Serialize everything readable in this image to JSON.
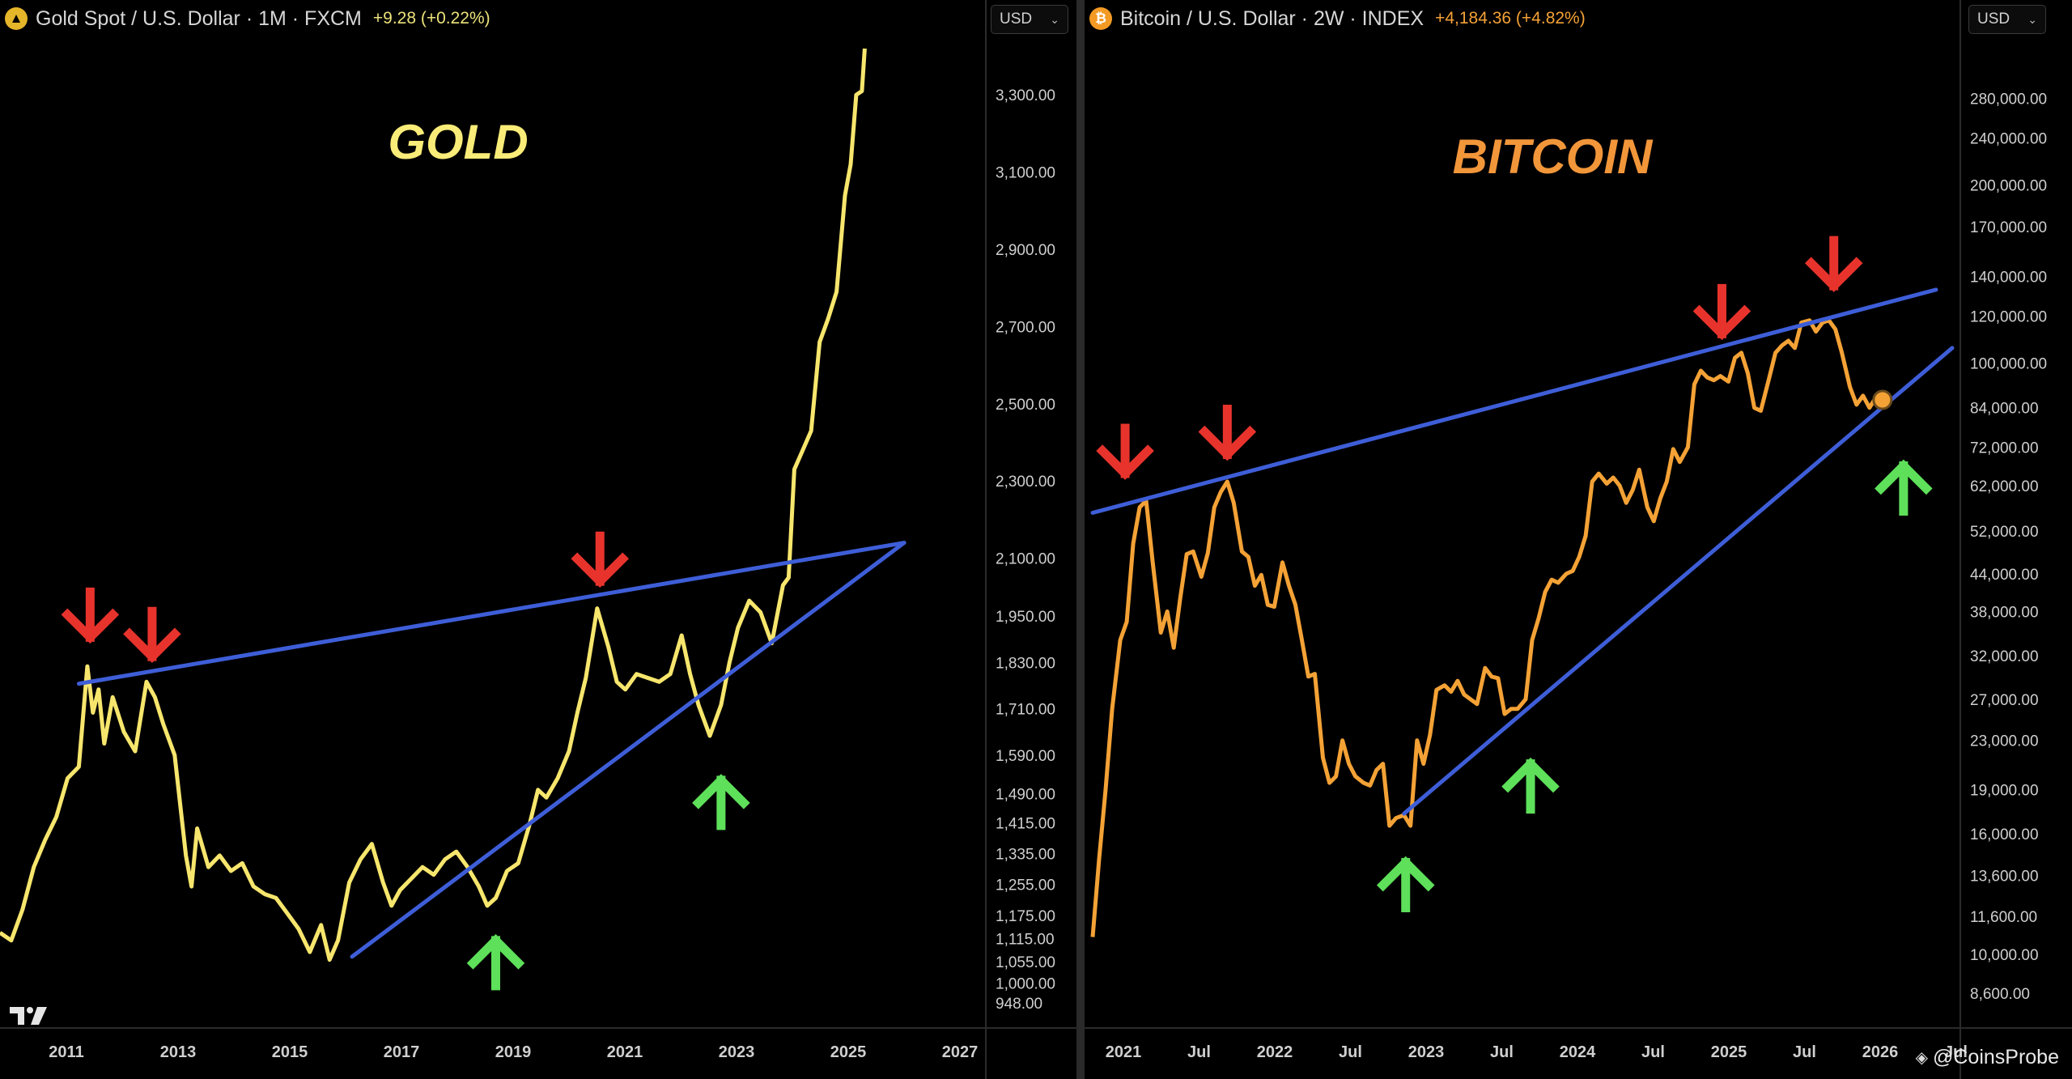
{
  "gold": {
    "header": {
      "icon": "gold-coin-icon",
      "title": "Gold Spot / U.S. Dollar · 1M · FXCM",
      "change": "+9.28 (+0.22%)",
      "change_color": "#ece27b"
    },
    "currency": "USD",
    "big_label": "GOLD",
    "big_label_color": "#f9ec78",
    "line_color": "#f7e66d",
    "trendline_color": "#3e5ed8",
    "down_arrow_color": "#e8332d",
    "up_arrow_color": "#5ee05a",
    "logo": "tradingview-logo-icon",
    "chart_data": {
      "type": "line",
      "scale": "linear",
      "ylim": [
        900,
        3420
      ],
      "xlim": [
        2010.0,
        2027.5
      ],
      "y_ticks": [
        "3,300.00",
        "3,100.00",
        "2,900.00",
        "2,700.00",
        "2,500.00",
        "2,300.00",
        "2,100.00",
        "1,950.00",
        "1,830.00",
        "1,710.00",
        "1,590.00",
        "1,490.00",
        "1,415.00",
        "1,335.00",
        "1,255.00",
        "1,175.00",
        "1,115.00",
        "1,055.00",
        "1,000.00",
        "948.00"
      ],
      "x_ticks": [
        "2011",
        "2013",
        "2015",
        "2017",
        "2019",
        "2021",
        "2023",
        "2025",
        "2027"
      ],
      "series": [
        {
          "x": [
            2010.0,
            2010.2,
            2010.4,
            2010.6,
            2010.8,
            2011.0,
            2011.2,
            2011.4,
            2011.55,
            2011.65,
            2011.75,
            2011.85,
            2012.0,
            2012.2,
            2012.4,
            2012.6,
            2012.75,
            2012.9,
            2013.1,
            2013.3,
            2013.4,
            2013.5,
            2013.7,
            2013.9,
            2014.1,
            2014.3,
            2014.5,
            2014.7,
            2014.9,
            2015.1,
            2015.3,
            2015.5,
            2015.7,
            2015.85,
            2016.0,
            2016.2,
            2016.4,
            2016.6,
            2016.8,
            2016.95,
            2017.1,
            2017.3,
            2017.5,
            2017.7,
            2017.9,
            2018.1,
            2018.3,
            2018.5,
            2018.65,
            2018.8,
            2019.0,
            2019.2,
            2019.4,
            2019.55,
            2019.7,
            2019.9,
            2020.1,
            2020.25,
            2020.4,
            2020.6,
            2020.8,
            2020.95,
            2021.1,
            2021.3,
            2021.5,
            2021.7,
            2021.9,
            2022.1,
            2022.25,
            2022.4,
            2022.6,
            2022.8,
            2022.95,
            2023.1,
            2023.3,
            2023.5,
            2023.7,
            2023.9,
            2024.0,
            2024.1,
            2024.25,
            2024.4,
            2024.55,
            2024.7,
            2024.85,
            2025.0,
            2025.1,
            2025.2,
            2025.3,
            2025.35
          ],
          "y": [
            1130,
            1110,
            1190,
            1300,
            1370,
            1430,
            1530,
            1560,
            1820,
            1700,
            1760,
            1620,
            1740,
            1650,
            1600,
            1780,
            1740,
            1670,
            1590,
            1330,
            1250,
            1400,
            1300,
            1330,
            1290,
            1310,
            1250,
            1230,
            1220,
            1180,
            1140,
            1080,
            1150,
            1060,
            1110,
            1260,
            1320,
            1360,
            1260,
            1200,
            1240,
            1270,
            1300,
            1280,
            1320,
            1340,
            1300,
            1250,
            1200,
            1220,
            1290,
            1310,
            1410,
            1500,
            1480,
            1530,
            1600,
            1700,
            1790,
            1970,
            1870,
            1780,
            1760,
            1800,
            1790,
            1780,
            1800,
            1900,
            1800,
            1720,
            1640,
            1720,
            1830,
            1920,
            1990,
            1960,
            1880,
            2030,
            2050,
            2330,
            2380,
            2430,
            2660,
            2720,
            2790,
            3040,
            3120,
            3300,
            3310,
            3420
          ]
        }
      ],
      "trendlines": [
        {
          "x": [
            2011.4,
            2026.05
          ],
          "y": [
            1775,
            2140
          ]
        },
        {
          "x": [
            2016.25,
            2026.05
          ],
          "y": [
            1068,
            2140
          ]
        }
      ],
      "arrows_down": [
        {
          "x": 2011.6,
          "y": 1895
        },
        {
          "x": 2012.7,
          "y": 1845
        },
        {
          "x": 2020.65,
          "y": 2040
        }
      ],
      "arrows_up": [
        {
          "x": 2018.8,
          "y": 1110
        },
        {
          "x": 2022.8,
          "y": 1525
        }
      ]
    }
  },
  "bitcoin": {
    "header": {
      "icon": "bitcoin-icon",
      "title": "Bitcoin / U.S. Dollar · 2W · INDEX",
      "change": "+4,184.36 (+4.82%)",
      "change_color": "#f4a236"
    },
    "currency": "USD",
    "big_label": "BITCOIN",
    "big_label_color": "#f2963a",
    "line_color": "#f4a236",
    "trendline_color": "#3e5ed8",
    "down_arrow_color": "#e8332d",
    "up_arrow_color": "#5ee05a",
    "credit": "@CoinsProbe",
    "credit_icon": "binance-square-icon",
    "chart_data": {
      "type": "line",
      "scale": "log",
      "ylim": [
        7700,
        340000
      ],
      "xlim": [
        2020.95,
        2026.35
      ],
      "y_ticks": [
        "280,000.00",
        "240,000.00",
        "200,000.00",
        "170,000.00",
        "140,000.00",
        "120,000.00",
        "100,000.00",
        "84,000.00",
        "72,000.00",
        "62,000.00",
        "52,000.00",
        "44,000.00",
        "38,000.00",
        "32,000.00",
        "27,000.00",
        "23,000.00",
        "19,000.00",
        "16,000.00",
        "13,600.00",
        "11,600.00",
        "10,000.00",
        "8,600.00"
      ],
      "x_ticks": [
        "2021",
        "Jul",
        "2022",
        "Jul",
        "2023",
        "Jul",
        "2024",
        "Jul",
        "2025",
        "Jul",
        "2026",
        "Jul"
      ],
      "series": [
        {
          "x": [
            2021.0,
            2021.04,
            2021.08,
            2021.12,
            2021.17,
            2021.21,
            2021.25,
            2021.29,
            2021.33,
            2021.37,
            2021.42,
            2021.46,
            2021.5,
            2021.54,
            2021.58,
            2021.62,
            2021.67,
            2021.71,
            2021.75,
            2021.79,
            2021.83,
            2021.87,
            2021.92,
            2021.96,
            2022.0,
            2022.04,
            2022.08,
            2022.12,
            2022.17,
            2022.21,
            2022.25,
            2022.29,
            2022.33,
            2022.37,
            2022.42,
            2022.46,
            2022.5,
            2022.54,
            2022.58,
            2022.62,
            2022.67,
            2022.71,
            2022.75,
            2022.79,
            2022.83,
            2022.87,
            2022.92,
            2022.96,
            2023.0,
            2023.04,
            2023.08,
            2023.12,
            2023.17,
            2023.21,
            2023.25,
            2023.29,
            2023.33,
            2023.37,
            2023.42,
            2023.46,
            2023.5,
            2023.54,
            2023.58,
            2023.62,
            2023.67,
            2023.71,
            2023.75,
            2023.79,
            2023.83,
            2023.87,
            2023.92,
            2023.96,
            2024.0,
            2024.04,
            2024.08,
            2024.12,
            2024.17,
            2024.21,
            2024.25,
            2024.29,
            2024.33,
            2024.37,
            2024.42,
            2024.46,
            2024.5,
            2024.54,
            2024.58,
            2024.62,
            2024.67,
            2024.71,
            2024.75,
            2024.79,
            2024.83,
            2024.87,
            2024.92,
            2024.96,
            2025.0,
            2025.04,
            2025.08,
            2025.12,
            2025.17,
            2025.21,
            2025.25,
            2025.29,
            2025.33,
            2025.37,
            2025.42,
            2025.46,
            2025.5,
            2025.54,
            2025.58,
            2025.62,
            2025.67,
            2025.71,
            2025.75,
            2025.79,
            2025.83,
            2025.87
          ],
          "y": [
            10700,
            14500,
            19000,
            26000,
            34000,
            36500,
            49500,
            57000,
            58500,
            46000,
            35000,
            38000,
            33000,
            40000,
            47500,
            48000,
            43500,
            47700,
            57000,
            60500,
            63000,
            58000,
            48000,
            47000,
            42000,
            43800,
            39000,
            38700,
            46000,
            42000,
            39000,
            34000,
            29500,
            29800,
            21500,
            19500,
            20000,
            23000,
            21000,
            20000,
            19500,
            19300,
            20500,
            21000,
            16500,
            17000,
            17200,
            16500,
            23000,
            21000,
            23500,
            28000,
            28500,
            27800,
            29000,
            27500,
            27000,
            26500,
            30500,
            29500,
            29300,
            25500,
            26000,
            26000,
            27000,
            34000,
            37000,
            41000,
            43000,
            42500,
            44000,
            44500,
            47000,
            51000,
            63000,
            65000,
            62500,
            64000,
            62000,
            58000,
            61000,
            66000,
            57000,
            54000,
            59000,
            63000,
            71500,
            68000,
            72000,
            92000,
            97000,
            94500,
            93500,
            95000,
            93000,
            102000,
            104000,
            96000,
            84000,
            83000,
            94000,
            104000,
            107000,
            109000,
            106000,
            117000,
            118000,
            113000,
            117000,
            118000,
            114000,
            104000,
            91000,
            85000,
            88000,
            84000,
            87500,
            86600
          ]
        }
      ],
      "trendlines": [
        {
          "x": [
            2021.0,
            2026.2
          ],
          "y": [
            55800,
            133000
          ]
        },
        {
          "x": [
            2022.92,
            2026.3
          ],
          "y": [
            17300,
            106000
          ]
        }
      ],
      "arrows_down": [
        {
          "x": 2021.2,
          "y": 65000
        },
        {
          "x": 2021.83,
          "y": 70000
        },
        {
          "x": 2024.88,
          "y": 112000
        },
        {
          "x": 2025.57,
          "y": 135000
        }
      ],
      "arrows_up": [
        {
          "x": 2022.93,
          "y": 14300
        },
        {
          "x": 2023.7,
          "y": 21000
        },
        {
          "x": 2026.0,
          "y": 67000
        }
      ],
      "last_point": {
        "x": 2025.87,
        "y": 86600
      }
    }
  }
}
